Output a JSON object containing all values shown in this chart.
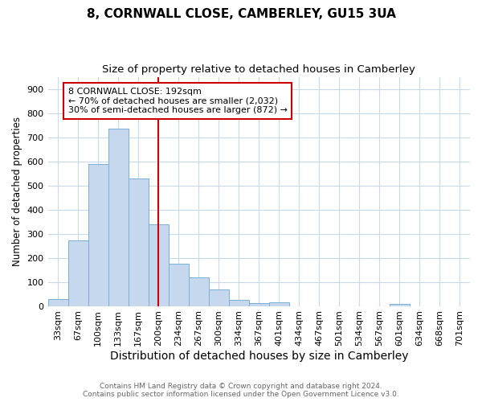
{
  "title1": "8, CORNWALL CLOSE, CAMBERLEY, GU15 3UA",
  "title2": "Size of property relative to detached houses in Camberley",
  "xlabel": "Distribution of detached houses by size in Camberley",
  "ylabel": "Number of detached properties",
  "bar_labels": [
    "33sqm",
    "67sqm",
    "100sqm",
    "133sqm",
    "167sqm",
    "200sqm",
    "234sqm",
    "267sqm",
    "300sqm",
    "334sqm",
    "367sqm",
    "401sqm",
    "434sqm",
    "467sqm",
    "501sqm",
    "534sqm",
    "567sqm",
    "601sqm",
    "634sqm",
    "668sqm",
    "701sqm"
  ],
  "bar_values": [
    27,
    272,
    590,
    735,
    530,
    340,
    175,
    120,
    67,
    25,
    13,
    15,
    0,
    0,
    0,
    0,
    0,
    8,
    0,
    0,
    0
  ],
  "bar_color": "#c5d8ee",
  "bar_edge_color": "#7aafd4",
  "vline_x": 5.0,
  "annotation_line1": "8 CORNWALL CLOSE: 192sqm",
  "annotation_line2": "← 70% of detached houses are smaller (2,032)",
  "annotation_line3": "30% of semi-detached houses are larger (872) →",
  "annotation_box_color": "#ffffff",
  "annotation_box_edge": "#cc0000",
  "vline_color": "#cc0000",
  "ylim": [
    0,
    950
  ],
  "yticks": [
    0,
    100,
    200,
    300,
    400,
    500,
    600,
    700,
    800,
    900
  ],
  "footer1": "Contains HM Land Registry data © Crown copyright and database right 2024.",
  "footer2": "Contains public sector information licensed under the Open Government Licence v3.0.",
  "background_color": "#ffffff",
  "grid_color": "#c8daea",
  "title1_fontsize": 11,
  "title2_fontsize": 9.5,
  "xlabel_fontsize": 10,
  "ylabel_fontsize": 8.5,
  "tick_fontsize": 8,
  "annotation_fontsize": 8,
  "footer_fontsize": 6.5
}
